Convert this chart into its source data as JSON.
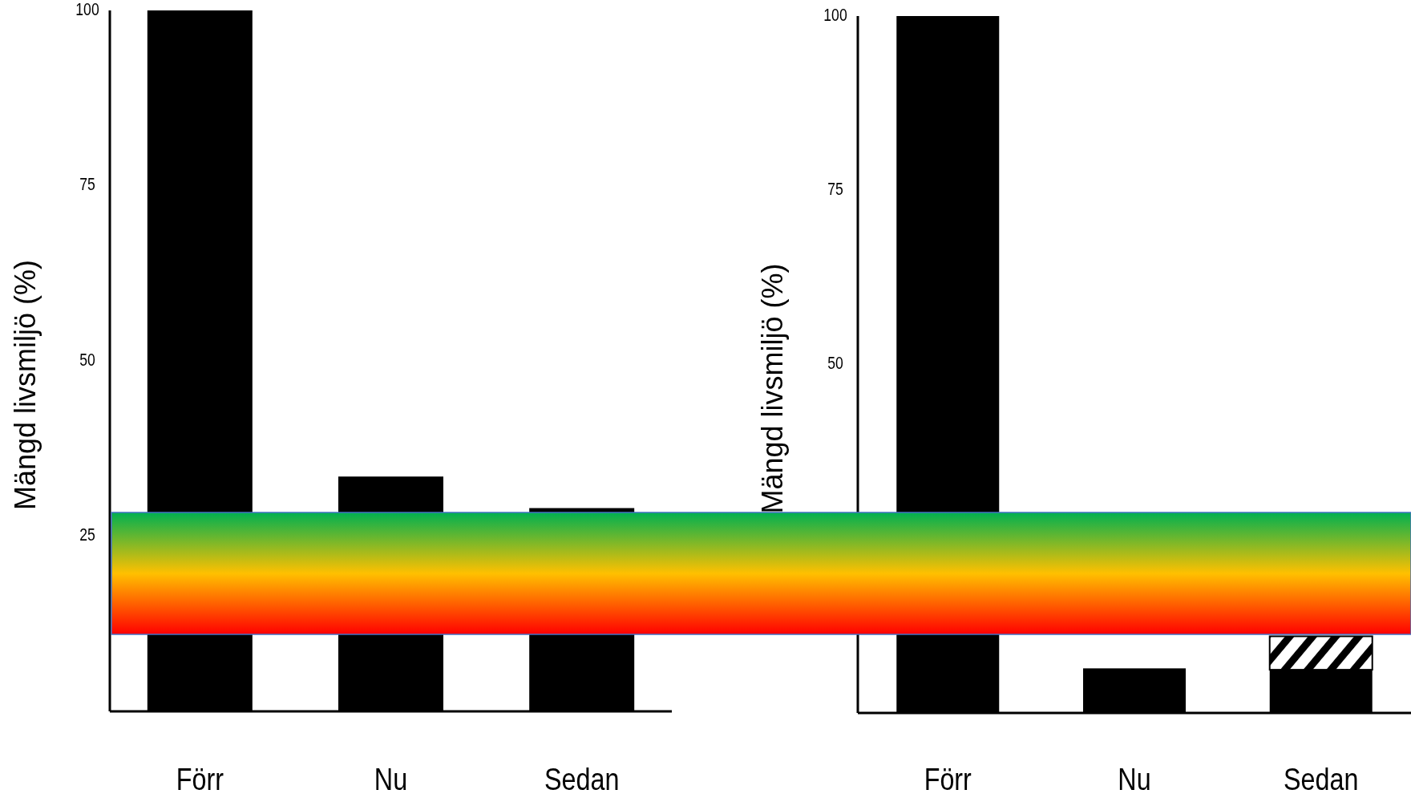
{
  "chart_data": [
    {
      "type": "bar",
      "ylabel": "Mängd livsmiljö (%)",
      "categories": [
        "Förr",
        "Nu",
        "Sedan"
      ],
      "values": [
        100,
        33.5,
        29
      ],
      "color": "#000000",
      "ylim": [
        0,
        100
      ],
      "yticks": [
        25,
        50,
        75,
        100
      ]
    },
    {
      "type": "bar",
      "ylabel": "Mängd livsmiljö (%)",
      "categories": [
        "Förr",
        "Nu",
        "Sedan"
      ],
      "stacked": true,
      "series": [
        {
          "color": "#000000",
          "values": [
            100,
            6.4,
            6.2
          ]
        },
        {
          "color": "#000000",
          "values": [
            0,
            0,
            4.8
          ]
        }
      ],
      "ylim": [
        0,
        100
      ],
      "yticks": [
        50,
        75,
        100
      ]
    }
  ]
}
